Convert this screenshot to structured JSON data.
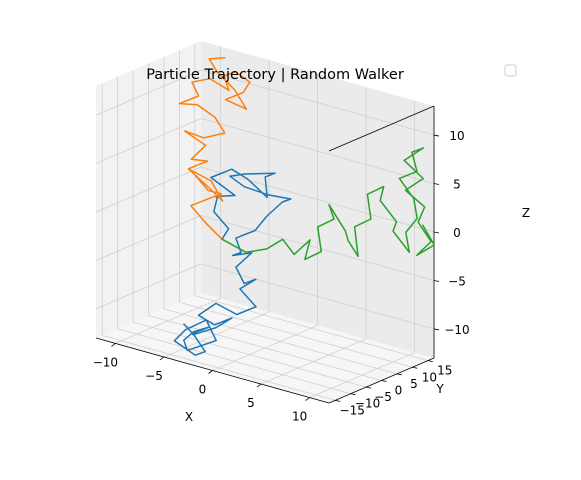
{
  "chart_data": {
    "type": "line",
    "projection": "3d",
    "title": "Particle Trajectory | Random Walker",
    "xlabel": "X",
    "ylabel": "Y",
    "zlabel": "Z",
    "xlim": [
      -12,
      12
    ],
    "ylim": [
      -17,
      17
    ],
    "zlim": [
      -13,
      13
    ],
    "xticks": [
      -10,
      -5,
      0,
      5,
      10
    ],
    "yticks": [
      -15,
      -10,
      -5,
      0,
      5,
      10,
      15
    ],
    "zticks": [
      -10,
      -5,
      0,
      5,
      10
    ],
    "grid": true,
    "legend": {
      "placement": "top-right",
      "entries": []
    },
    "series": [
      {
        "color": "#1f77b4",
        "points": [
          [
            -3.0,
            -4.5,
            -2.0
          ],
          [
            -2.0,
            -5.5,
            -0.5
          ],
          [
            -4.0,
            -4.0,
            0.5
          ],
          [
            -3.0,
            -6.0,
            2.5
          ],
          [
            -4.0,
            -3.5,
            2.0
          ],
          [
            -1.5,
            -5.0,
            3.0
          ],
          [
            -3.5,
            -6.5,
            4.5
          ],
          [
            -2.0,
            -4.5,
            5.5
          ],
          [
            -1.0,
            -2.5,
            4.5
          ],
          [
            1.5,
            -4.0,
            3.5
          ],
          [
            0.5,
            -1.5,
            5.0
          ],
          [
            2.0,
            -3.0,
            6.0
          ],
          [
            -0.5,
            -5.0,
            5.5
          ],
          [
            -2.5,
            -3.5,
            4.5
          ],
          [
            -1.5,
            -2.0,
            3.5
          ],
          [
            0.5,
            -0.5,
            3.0
          ],
          [
            2.5,
            0.5,
            3.0
          ],
          [
            1.0,
            2.5,
            2.0
          ],
          [
            0.0,
            0.5,
            0.5
          ],
          [
            -1.5,
            1.5,
            -1.5
          ],
          [
            -3.0,
            0.0,
            -2.5
          ],
          [
            -2.0,
            -1.5,
            -3.5
          ],
          [
            -3.5,
            0.5,
            -4.5
          ],
          [
            -2.0,
            2.0,
            -4.0
          ],
          [
            -3.0,
            0.0,
            -5.5
          ],
          [
            -1.5,
            -2.0,
            -6.5
          ],
          [
            0.0,
            -3.0,
            -5.5
          ],
          [
            -1.0,
            -5.0,
            -6.5
          ],
          [
            0.5,
            -4.5,
            -8.0
          ],
          [
            -1.0,
            -6.0,
            -9.0
          ],
          [
            -2.5,
            -8.0,
            -8.0
          ],
          [
            -4.0,
            -9.0,
            -9.5
          ],
          [
            -3.0,
            -7.0,
            -10.5
          ],
          [
            -1.5,
            -6.0,
            -9.5
          ],
          [
            -2.5,
            -8.0,
            -10.5
          ],
          [
            -5.0,
            -7.5,
            -12.0
          ],
          [
            -4.5,
            -9.5,
            -11.5
          ],
          [
            -3.0,
            -8.5,
            -10.5
          ],
          [
            -4.0,
            -10.5,
            -11.0
          ],
          [
            -5.5,
            -9.0,
            -12.5
          ],
          [
            -4.5,
            -11.0,
            -13.0
          ],
          [
            -2.0,
            -9.5,
            -11.5
          ],
          [
            -3.5,
            -8.0,
            -10.0
          ],
          [
            -5.5,
            -8.5,
            -11.5
          ],
          [
            -6.0,
            -10.5,
            -12.5
          ],
          [
            -4.0,
            -10.0,
            -13.5
          ],
          [
            -2.5,
            -11.5,
            -12.5
          ],
          [
            -3.5,
            -12.0,
            -11.0
          ],
          [
            -5.0,
            -10.5,
            -10.5
          ]
        ]
      },
      {
        "color": "#ff7f0e",
        "points": [
          [
            -3.0,
            -4.5,
            -2.0
          ],
          [
            -5.0,
            -3.5,
            -1.0
          ],
          [
            -7.0,
            -2.0,
            0.0
          ],
          [
            -5.5,
            -0.5,
            1.0
          ],
          [
            -4.0,
            -1.5,
            2.0
          ],
          [
            -6.0,
            0.5,
            1.5
          ],
          [
            -8.0,
            1.0,
            3.0
          ],
          [
            -6.5,
            3.0,
            2.0
          ],
          [
            -5.0,
            2.0,
            0.5
          ],
          [
            -7.0,
            4.0,
            1.0
          ],
          [
            -9.0,
            3.5,
            2.5
          ],
          [
            -7.5,
            5.0,
            3.5
          ],
          [
            -9.5,
            6.0,
            3.0
          ],
          [
            -8.5,
            7.5,
            4.5
          ],
          [
            -10.5,
            7.0,
            5.5
          ],
          [
            -9.0,
            8.5,
            5.0
          ],
          [
            -7.0,
            9.0,
            6.0
          ],
          [
            -8.5,
            10.5,
            7.0
          ],
          [
            -10.0,
            9.5,
            8.0
          ],
          [
            -12.0,
            10.0,
            7.5
          ],
          [
            -10.5,
            11.5,
            8.5
          ],
          [
            -11.5,
            12.5,
            9.5
          ],
          [
            -9.5,
            12.0,
            10.5
          ],
          [
            -8.0,
            13.5,
            9.5
          ],
          [
            -9.0,
            15.0,
            10.5
          ],
          [
            -7.5,
            14.0,
            11.5
          ],
          [
            -6.5,
            15.5,
            10.5
          ],
          [
            -7.5,
            16.5,
            9.0
          ],
          [
            -9.0,
            15.5,
            8.0
          ],
          [
            -7.0,
            16.0,
            7.5
          ],
          [
            -8.5,
            16.8,
            9.0
          ],
          [
            -10.0,
            16.0,
            10.5
          ],
          [
            -11.0,
            16.5,
            11.5
          ],
          [
            -9.5,
            16.8,
            12.0
          ]
        ]
      },
      {
        "color": "#2ca02c",
        "points": [
          [
            -3.0,
            -4.5,
            -2.0
          ],
          [
            -1.0,
            -3.0,
            -3.0
          ],
          [
            0.5,
            -1.0,
            -2.5
          ],
          [
            1.5,
            1.0,
            -1.5
          ],
          [
            3.0,
            0.0,
            -2.5
          ],
          [
            4.0,
            2.0,
            -1.0
          ],
          [
            3.0,
            3.5,
            -3.5
          ],
          [
            5.0,
            2.5,
            -2.0
          ],
          [
            4.0,
            4.5,
            0.0
          ],
          [
            6.0,
            3.5,
            1.5
          ],
          [
            5.0,
            5.0,
            2.5
          ],
          [
            7.0,
            4.0,
            0.5
          ],
          [
            6.5,
            6.5,
            -1.0
          ],
          [
            8.0,
            5.0,
            -2.0
          ],
          [
            7.0,
            7.0,
            0.5
          ],
          [
            9.0,
            6.0,
            2.0
          ],
          [
            8.0,
            8.0,
            4.0
          ],
          [
            10.0,
            7.0,
            5.5
          ],
          [
            9.0,
            9.0,
            3.5
          ],
          [
            11.0,
            8.0,
            2.0
          ],
          [
            10.0,
            10.0,
            0.5
          ],
          [
            12.0,
            9.0,
            -1.0
          ],
          [
            11.0,
            11.0,
            0.5
          ],
          [
            12.5,
            10.0,
            2.5
          ],
          [
            11.5,
            12.0,
            4.0
          ],
          [
            10.5,
            10.5,
            6.0
          ],
          [
            12.0,
            11.5,
            7.0
          ],
          [
            11.0,
            13.0,
            8.5
          ],
          [
            12.5,
            12.0,
            9.5
          ],
          [
            11.0,
            10.5,
            8.0
          ],
          [
            12.0,
            13.5,
            6.0
          ],
          [
            10.5,
            12.5,
            4.5
          ],
          [
            12.0,
            14.0,
            3.0
          ],
          [
            11.0,
            15.0,
            1.0
          ],
          [
            12.5,
            14.5,
            -0.5
          ],
          [
            11.5,
            13.0,
            -2.0
          ],
          [
            12.5,
            15.5,
            -1.0
          ],
          [
            11.0,
            16.5,
            0.5
          ]
        ]
      }
    ]
  }
}
